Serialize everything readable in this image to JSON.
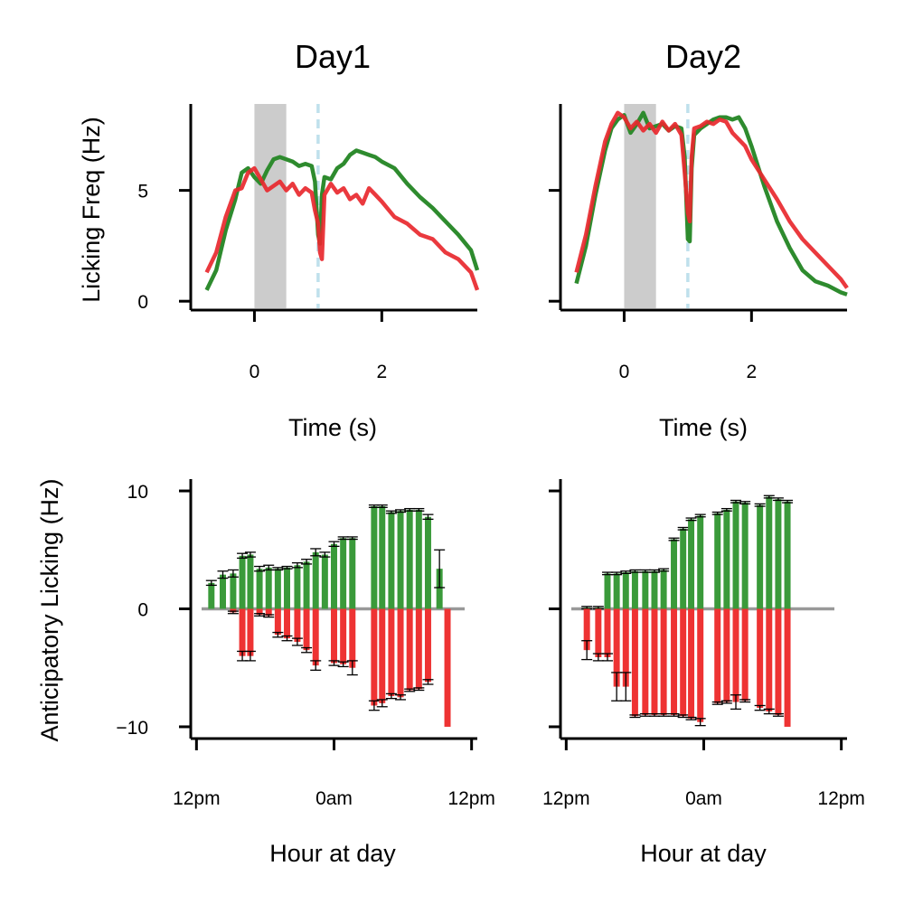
{
  "chart_data": [
    {
      "type": "line",
      "title": "Day1",
      "xlabel": "Time (s)",
      "ylabel": "Licking Freq (Hz)",
      "xlim": [
        -1.0,
        3.5
      ],
      "ylim": [
        -0.4,
        8.9
      ],
      "xticks": [
        0,
        2
      ],
      "yticks": [
        0,
        5
      ],
      "xtick_labels": [
        "0",
        "2"
      ],
      "ytick_labels": [
        "0",
        "5"
      ],
      "stimulus_window": [
        0,
        0.5
      ],
      "reward_time": 1.0,
      "series": [
        {
          "color": "#2e8b2e",
          "x": [
            -0.75,
            -0.6,
            -0.45,
            -0.3,
            -0.2,
            -0.1,
            0.0,
            0.1,
            0.2,
            0.3,
            0.4,
            0.5,
            0.6,
            0.7,
            0.8,
            0.9,
            0.95,
            1.0,
            1.03,
            1.06,
            1.1,
            1.2,
            1.3,
            1.4,
            1.5,
            1.6,
            1.7,
            1.8,
            1.9,
            2.0,
            2.2,
            2.4,
            2.6,
            2.8,
            3.0,
            3.2,
            3.4,
            3.5
          ],
          "values": [
            0.5,
            1.4,
            3.2,
            4.6,
            5.8,
            6.0,
            5.6,
            5.3,
            5.9,
            6.4,
            6.5,
            6.4,
            6.3,
            6.1,
            6.2,
            6.1,
            5.4,
            3.0,
            2.6,
            4.8,
            5.6,
            5.5,
            6.0,
            6.2,
            6.6,
            6.8,
            6.7,
            6.6,
            6.5,
            6.3,
            6.0,
            5.3,
            4.7,
            4.2,
            3.6,
            3.0,
            2.3,
            1.4
          ]
        },
        {
          "color": "#e8282e",
          "x": [
            -0.75,
            -0.6,
            -0.45,
            -0.3,
            -0.2,
            -0.1,
            0.0,
            0.1,
            0.2,
            0.3,
            0.4,
            0.5,
            0.6,
            0.7,
            0.8,
            0.9,
            0.95,
            1.0,
            1.03,
            1.06,
            1.1,
            1.2,
            1.3,
            1.4,
            1.5,
            1.6,
            1.7,
            1.8,
            1.9,
            2.0,
            2.2,
            2.4,
            2.6,
            2.8,
            3.0,
            3.2,
            3.4,
            3.5
          ],
          "values": [
            1.3,
            2.2,
            3.8,
            5.0,
            5.1,
            5.8,
            6.0,
            5.5,
            5.0,
            5.2,
            5.4,
            5.0,
            5.3,
            4.8,
            5.1,
            4.9,
            4.1,
            3.5,
            2.2,
            1.9,
            4.8,
            5.3,
            4.9,
            5.1,
            4.6,
            4.8,
            4.4,
            5.1,
            4.8,
            4.5,
            3.8,
            3.5,
            3.0,
            2.8,
            2.2,
            1.9,
            1.3,
            0.5
          ]
        }
      ]
    },
    {
      "type": "line",
      "title": "Day2",
      "xlabel": "Time (s)",
      "ylabel": "",
      "xlim": [
        -1.0,
        3.5
      ],
      "ylim": [
        -0.4,
        8.9
      ],
      "xticks": [
        0,
        2
      ],
      "yticks": [
        0,
        5
      ],
      "xtick_labels": [
        "0",
        "2"
      ],
      "ytick_labels": [
        "",
        ""
      ],
      "stimulus_window": [
        0,
        0.5
      ],
      "reward_time": 1.0,
      "series": [
        {
          "color": "#2e8b2e",
          "x": [
            -0.75,
            -0.6,
            -0.45,
            -0.3,
            -0.2,
            -0.1,
            0.0,
            0.1,
            0.2,
            0.3,
            0.4,
            0.5,
            0.6,
            0.7,
            0.8,
            0.9,
            0.95,
            1.0,
            1.03,
            1.06,
            1.1,
            1.2,
            1.3,
            1.4,
            1.5,
            1.6,
            1.7,
            1.8,
            1.9,
            2.0,
            2.2,
            2.4,
            2.6,
            2.8,
            3.0,
            3.2,
            3.4,
            3.5
          ],
          "values": [
            0.8,
            2.5,
            4.8,
            6.8,
            7.8,
            8.2,
            8.4,
            7.6,
            8.0,
            8.5,
            7.8,
            7.9,
            8.0,
            7.7,
            7.9,
            7.8,
            6.5,
            2.8,
            2.7,
            6.0,
            7.5,
            7.8,
            8.0,
            8.2,
            8.3,
            8.3,
            8.2,
            8.3,
            7.8,
            7.0,
            5.2,
            3.6,
            2.4,
            1.4,
            0.9,
            0.7,
            0.4,
            0.3
          ]
        },
        {
          "color": "#e8282e",
          "x": [
            -0.75,
            -0.6,
            -0.45,
            -0.3,
            -0.2,
            -0.1,
            0.0,
            0.1,
            0.2,
            0.3,
            0.4,
            0.5,
            0.6,
            0.7,
            0.8,
            0.9,
            0.95,
            1.0,
            1.03,
            1.06,
            1.1,
            1.2,
            1.3,
            1.4,
            1.5,
            1.6,
            1.7,
            1.8,
            1.9,
            2.0,
            2.2,
            2.4,
            2.6,
            2.8,
            3.0,
            3.2,
            3.4,
            3.5
          ],
          "values": [
            1.3,
            3.0,
            5.2,
            7.2,
            8.0,
            8.5,
            8.3,
            7.8,
            8.1,
            7.7,
            8.0,
            7.6,
            8.1,
            7.7,
            8.0,
            7.5,
            5.8,
            4.0,
            3.6,
            6.5,
            7.8,
            7.9,
            8.1,
            8.0,
            8.2,
            8.1,
            7.6,
            7.3,
            7.0,
            6.4,
            5.5,
            4.6,
            3.6,
            2.8,
            2.2,
            1.6,
            1.0,
            0.6
          ]
        }
      ]
    },
    {
      "type": "bar",
      "xlabel": "Hour at day",
      "ylabel": "Anticipatory Licking (Hz)",
      "xlim": [
        -0.5,
        24.5
      ],
      "ylim": [
        -11,
        11
      ],
      "xticks": [
        0,
        12,
        24
      ],
      "yticks": [
        -10,
        0,
        10
      ],
      "xtick_labels": [
        "12pm",
        "0am",
        "12pm"
      ],
      "ytick_labels": [
        "−10",
        "0",
        "10"
      ],
      "baseline_color": "#999999",
      "series": [
        {
          "color": "#3a9a3a",
          "x": [
            1.3,
            2.3,
            3.2,
            4.0,
            4.7,
            5.5,
            6.3,
            7.1,
            7.9,
            8.8,
            9.6,
            10.4,
            11.2,
            12.0,
            12.8,
            13.6,
            15.5,
            16.2,
            17.0,
            17.8,
            18.6,
            19.4,
            20.2,
            21.2
          ],
          "values": [
            2.2,
            2.9,
            3.0,
            4.5,
            4.6,
            3.4,
            3.5,
            3.4,
            3.5,
            3.7,
            4.0,
            4.8,
            4.6,
            5.5,
            6.0,
            6.0,
            8.7,
            8.7,
            8.2,
            8.3,
            8.4,
            8.4,
            7.8,
            3.4
          ],
          "errors": [
            0.2,
            0.3,
            0.3,
            0.2,
            0.2,
            0.2,
            0.2,
            0.1,
            0.1,
            0.2,
            0.2,
            0.3,
            0.2,
            0.2,
            0.1,
            0.1,
            0.1,
            0.1,
            0.1,
            0.1,
            0.1,
            0.1,
            0.2,
            1.6
          ]
        },
        {
          "color": "#ee3333",
          "x": [
            3.2,
            4.0,
            4.7,
            5.5,
            6.3,
            7.1,
            7.9,
            8.8,
            9.6,
            10.4,
            12.0,
            12.8,
            13.6,
            15.5,
            16.2,
            17.0,
            17.8,
            18.6,
            19.4,
            20.2,
            21.9
          ],
          "values": [
            -0.3,
            -4.0,
            -4.0,
            -0.5,
            -0.6,
            -2.2,
            -2.5,
            -2.8,
            -3.5,
            -4.8,
            -4.6,
            -4.7,
            -5.0,
            -8.2,
            -8.0,
            -7.4,
            -7.5,
            -6.9,
            -6.8,
            -6.2,
            -10.0
          ],
          "errors": [
            0.1,
            0.4,
            0.4,
            0.1,
            0.1,
            0.2,
            0.2,
            0.3,
            0.2,
            0.4,
            0.2,
            0.2,
            0.6,
            0.4,
            0.3,
            0.2,
            0.2,
            0.1,
            0.1,
            0.2,
            0.0
          ]
        }
      ]
    },
    {
      "type": "bar",
      "xlabel": "Hour at day",
      "ylabel": "",
      "xlim": [
        -0.5,
        24.5
      ],
      "ylim": [
        -11,
        11
      ],
      "xticks": [
        0,
        12,
        24
      ],
      "yticks": [
        -10,
        0,
        10
      ],
      "xtick_labels": [
        "12pm",
        "0am",
        "12pm"
      ],
      "ytick_labels": [
        "",
        "",
        ""
      ],
      "baseline_color": "#999999",
      "series": [
        {
          "color": "#3a9a3a",
          "x": [
            1.8,
            2.8,
            3.6,
            4.4,
            5.2,
            6.0,
            6.9,
            7.7,
            8.5,
            9.4,
            10.2,
            10.9,
            11.7,
            13.2,
            14.0,
            14.8,
            15.6,
            16.9,
            17.7,
            18.5,
            19.3
          ],
          "values": [
            0.1,
            0.1,
            3.0,
            3.0,
            3.1,
            3.2,
            3.2,
            3.2,
            3.3,
            5.9,
            6.8,
            7.6,
            7.9,
            8.1,
            8.4,
            9.1,
            9.0,
            8.8,
            9.5,
            9.3,
            9.1
          ],
          "errors": [
            0.1,
            0.1,
            0.1,
            0.1,
            0.1,
            0.1,
            0.1,
            0.1,
            0.1,
            0.1,
            0.1,
            0.1,
            0.1,
            0.1,
            0.1,
            0.1,
            0.1,
            0.1,
            0.1,
            0.1,
            0.1
          ]
        },
        {
          "color": "#ee3333",
          "x": [
            1.8,
            2.8,
            3.6,
            4.4,
            5.2,
            6.0,
            6.9,
            7.7,
            8.5,
            9.4,
            10.2,
            10.9,
            11.7,
            13.2,
            14.0,
            14.8,
            15.6,
            16.9,
            17.7,
            18.5,
            19.3
          ],
          "values": [
            -3.5,
            -4.1,
            -4.1,
            -6.6,
            -6.6,
            -9.1,
            -9.0,
            -9.0,
            -9.0,
            -9.0,
            -9.1,
            -9.3,
            -9.6,
            -8.0,
            -7.9,
            -7.9,
            -7.8,
            -8.4,
            -8.7,
            -9.0,
            -10.0
          ],
          "errors": [
            0.8,
            0.3,
            0.3,
            1.2,
            1.2,
            0.1,
            0.1,
            0.1,
            0.1,
            0.1,
            0.1,
            0.1,
            0.3,
            0.1,
            0.1,
            0.6,
            0.1,
            0.2,
            0.2,
            0.1,
            0.0
          ]
        }
      ]
    }
  ]
}
